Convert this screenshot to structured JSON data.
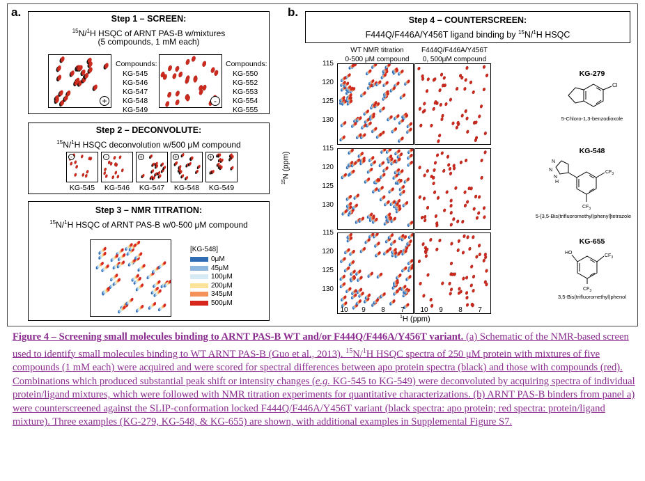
{
  "panel_a": {
    "label": "a.",
    "step1": {
      "title": "Step 1 – SCREEN:",
      "line1_sup1": "15",
      "line1_mid": "N/",
      "line1_sup2": "1",
      "line1_rest": "H HSQC of ARNT PAS-B w/mixtures",
      "line2": "(5 compounds, 1 mM each)",
      "plus_sign": "+",
      "minus_sign": "-",
      "compounds_label": "Compounds:",
      "set1": [
        "KG-545",
        "KG-546",
        "KG-547",
        "KG-548",
        "KG-549"
      ],
      "set2": [
        "KG-550",
        "KG-552",
        "KG-553",
        "KG-554",
        "KG-555"
      ]
    },
    "step2": {
      "title": "Step 2 – DECONVOLUTE:",
      "line1_sup": "15",
      "line1_mid": "N/",
      "line1_sup2": "1",
      "line1_rest": "H HSQC deconvolution w/500 μM compound",
      "items": [
        {
          "label": "KG-545",
          "sign": "-"
        },
        {
          "label": "KG-546",
          "sign": "-"
        },
        {
          "label": "KG-547",
          "sign": "+"
        },
        {
          "label": "KG-548",
          "sign": "+"
        },
        {
          "label": "KG-549",
          "sign": "+"
        }
      ]
    },
    "step3": {
      "title": "Step 3 – NMR TITRATION:",
      "line1_sup": "15",
      "line1_mid": "N/",
      "line1_sup2": "1",
      "line1_rest": "H HSQC of ARNT PAS-B w/0-500 μM compound",
      "legend_title": "[KG-548]",
      "legend": [
        {
          "label": "0μM",
          "color": "#2e6db4"
        },
        {
          "label": "45μM",
          "color": "#8fb8e0"
        },
        {
          "label": "100μM",
          "color": "#d6eaf4"
        },
        {
          "label": "200μM",
          "color": "#fce39a"
        },
        {
          "label": "345μM",
          "color": "#f5925a"
        },
        {
          "label": "500μM",
          "color": "#d7261e"
        }
      ]
    }
  },
  "panel_b": {
    "label": "b.",
    "title": "Step 4 – COUNTERSCREEN:",
    "subtitle_pre": "F444Q/F446A/Y456T ligand binding by ",
    "subtitle_sup1": "15",
    "subtitle_mid": "N/",
    "subtitle_sup2": "1",
    "subtitle_post": "H HSQC",
    "col1_line1": "WT NMR titration",
    "col1_line2": "0-500 μM compound",
    "col2_line1": "F444Q/F446A/Y456T",
    "col2_line2": "0, 500μM compound",
    "y_axis_sup": "15",
    "y_axis_label": "N (ppm)",
    "x_axis_sup": "1",
    "x_axis_label": "H (ppm)",
    "y_ticks": [
      "115",
      "120",
      "125",
      "130"
    ],
    "x_ticks": [
      "10",
      "9",
      "8",
      "7"
    ],
    "molecules": [
      {
        "id": "KG-279",
        "name": "5-Chloro-1,3-benzodioxole",
        "cl": "Cl"
      },
      {
        "id": "KG-548",
        "name": "5-[3,5-Bis(trifluoromethyl)phenyl]tetrazole",
        "cf3": "CF",
        "sub3": "3",
        "n": "N",
        "nh": "N",
        "h": "H"
      },
      {
        "id": "KG-655",
        "name": "3,5-Bis(trifluoromethyl)phenol",
        "ho": "HO",
        "cf3": "CF",
        "sub3": "3"
      }
    ],
    "colors": {
      "apo": "#111111",
      "ligand": "#cc2a1e"
    }
  },
  "caption": {
    "bold": "Figure 4 – Screening small molecules binding to ARNT PAS-B WT and/or F444Q/F446A/Y456T variant.",
    "p1": " (a) Schematic of the NMR-based screen used to identify small molecules binding to WT ARNT PAS-B (Guo et al., 2013). ",
    "sup15": "15",
    "p1b": "N/",
    "sup1": "1",
    "p2": "H HSQC spectra of 250 μM protein with mixtures of five compounds (1 mM each) were acquired and were scored for spectral differences between apo protein spectra (black) and those with compounds (red). Combinations which produced substantial peak shift or intensity changes (",
    "eg": "e.g.",
    "p3": " KG-545 to KG-549) were deconvoluted by acquiring spectra of individual protein/ligand mixtures, which were followed with NMR titration experiments for quantitative characterizations. (b) ARNT PAS-B binders from panel a) were counterscreened against the SLIP-conformation locked F444Q/F446A/Y456T variant (black spectra: apo protein; red spectra: protein/ligand mixture). Three examples (KG-279, KG-548, & KG-655) are shown, with additional examples in Supplemental Figure S7."
  }
}
